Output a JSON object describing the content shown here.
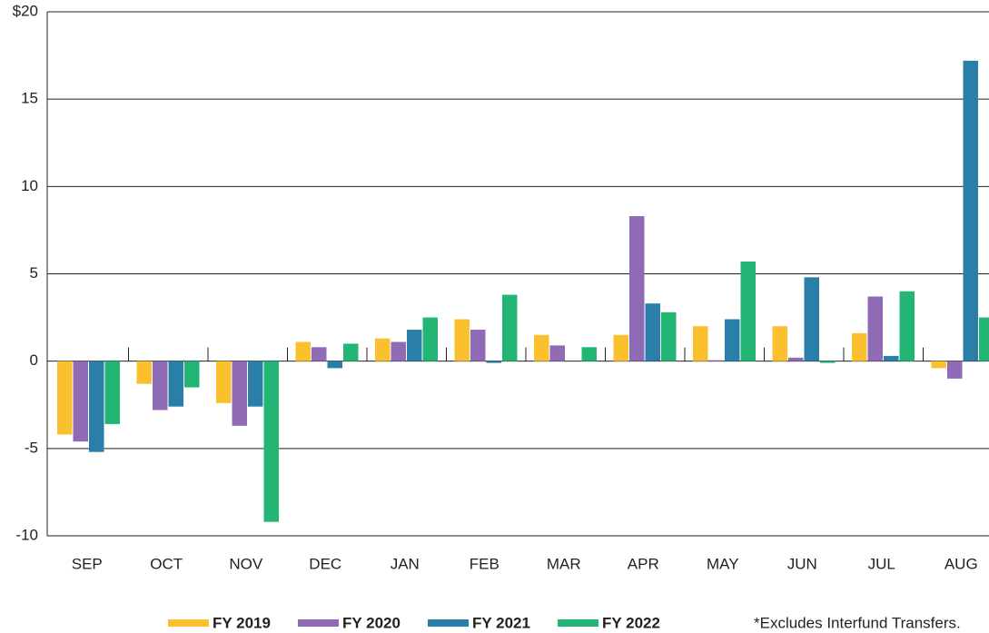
{
  "chart_data": {
    "type": "bar",
    "note": "*Excludes Interfund Transfers.",
    "categories": [
      "SEP",
      "OCT",
      "NOV",
      "DEC",
      "JAN",
      "FEB",
      "MAR",
      "APR",
      "MAY",
      "JUN",
      "JUL",
      "AUG"
    ],
    "series": [
      {
        "name": "FY 2019",
        "color": "#fbc02d",
        "values": [
          -4.2,
          -1.3,
          -2.4,
          1.1,
          1.3,
          2.4,
          1.5,
          1.5,
          2.0,
          2.0,
          1.6,
          -0.4
        ]
      },
      {
        "name": "FY 2020",
        "color": "#8e6bb4",
        "values": [
          -4.6,
          -2.8,
          -3.7,
          0.8,
          1.1,
          1.8,
          0.9,
          8.3,
          0.05,
          0.2,
          3.7,
          -1.0
        ]
      },
      {
        "name": "FY 2021",
        "color": "#2a7fa8",
        "values": [
          -5.2,
          -2.6,
          -2.6,
          -0.4,
          1.8,
          -0.1,
          0.0,
          3.3,
          2.4,
          4.8,
          0.3,
          17.2
        ]
      },
      {
        "name": "FY 2022",
        "color": "#22b573",
        "values": [
          -3.6,
          -1.5,
          -9.2,
          1.0,
          2.5,
          3.8,
          0.8,
          2.8,
          5.7,
          -0.1,
          4.0,
          2.5
        ]
      }
    ],
    "ylim": [
      -10,
      20
    ],
    "yticks": [
      -10,
      -5,
      0,
      5,
      10,
      15,
      {
        "value": 20,
        "label": "$20"
      }
    ],
    "grid": true
  }
}
